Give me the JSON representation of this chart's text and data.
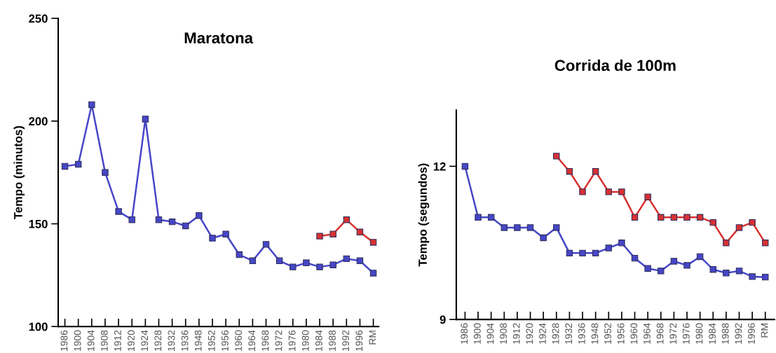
{
  "chart_data": [
    {
      "type": "line",
      "title": "Maratona",
      "ylabel": "Tempo (minutos)",
      "marker": "square",
      "grid": false,
      "categories": [
        "1986",
        "1900",
        "1904",
        "1908",
        "1912",
        "1920",
        "1924",
        "1928",
        "1932",
        "1936",
        "1948",
        "1952",
        "1956",
        "1960",
        "1964",
        "1968",
        "1972",
        "1976",
        "1980",
        "1984",
        "1988",
        "1992",
        "1996",
        "RM"
      ],
      "ylim": [
        100,
        250
      ],
      "yticks": [
        100,
        150,
        200,
        250
      ],
      "series": [
        {
          "color": "#4646c8",
          "values": [
            178,
            179,
            208,
            175,
            156,
            152,
            201,
            152,
            151,
            149,
            154,
            143,
            145,
            135,
            132,
            140,
            132,
            129,
            131,
            129,
            130,
            133,
            132,
            126
          ]
        },
        {
          "color": "#d83030",
          "values": [
            null,
            null,
            null,
            null,
            null,
            null,
            null,
            null,
            null,
            null,
            null,
            null,
            null,
            null,
            null,
            null,
            null,
            null,
            null,
            144,
            145,
            152,
            146,
            141
          ]
        }
      ]
    },
    {
      "type": "line",
      "title": "Corrida de 100m",
      "ylabel": "Tempo (segundos)",
      "marker": "square",
      "grid": false,
      "categories": [
        "1986",
        "1900",
        "1904",
        "1908",
        "1912",
        "1920",
        "1924",
        "1928",
        "1932",
        "1936",
        "1948",
        "1952",
        "1956",
        "1960",
        "1964",
        "1968",
        "1972",
        "1976",
        "1980",
        "1984",
        "1988",
        "1992",
        "1996",
        "RM"
      ],
      "ylim": [
        9,
        13.1
      ],
      "yticks": [
        9,
        12
      ],
      "series": [
        {
          "color": "#4646c8",
          "values": [
            12.0,
            11.0,
            11.0,
            10.8,
            10.8,
            10.8,
            10.6,
            10.8,
            10.3,
            10.3,
            10.3,
            10.4,
            10.5,
            10.2,
            10.0,
            9.95,
            10.14,
            10.06,
            10.23,
            9.98,
            9.91,
            9.95,
            9.84,
            9.83
          ]
        },
        {
          "color": "#d83030",
          "values": [
            null,
            null,
            null,
            null,
            null,
            null,
            null,
            12.2,
            11.9,
            11.5,
            11.9,
            11.5,
            11.5,
            11.0,
            11.4,
            11.0,
            11.0,
            11.0,
            11.0,
            10.9,
            10.5,
            10.8,
            10.9,
            10.5
          ]
        }
      ]
    }
  ]
}
